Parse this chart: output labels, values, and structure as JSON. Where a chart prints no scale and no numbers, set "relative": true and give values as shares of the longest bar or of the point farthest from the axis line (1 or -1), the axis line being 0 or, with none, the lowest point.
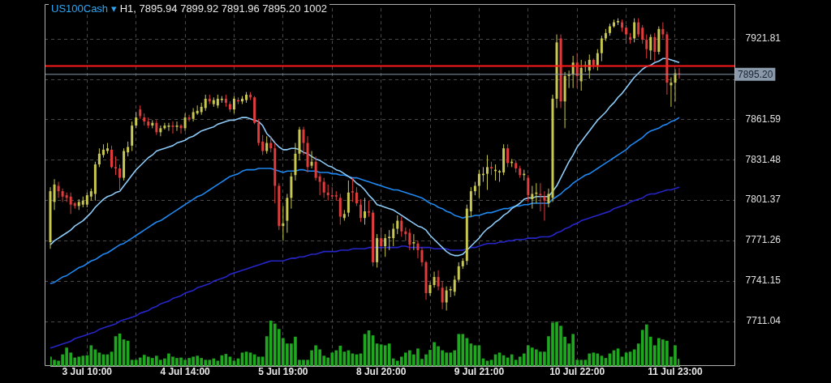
{
  "chart_data": [
    {
      "type": "candlestick",
      "title": "US100Cash ▾",
      "subtitle": "H1, 7895.94 7899.92 7891.96 7895.20 1002",
      "categories": [
        null,
        null,
        null,
        null,
        null,
        null,
        null,
        null,
        null,
        "3 Jul 10:00",
        null,
        null,
        null,
        null,
        null,
        null,
        null,
        null,
        null,
        null,
        null,
        null,
        null,
        null,
        null,
        null,
        null,
        null,
        null,
        null,
        null,
        null,
        null,
        "4 Jul 14:00",
        null,
        null,
        null,
        null,
        null,
        null,
        null,
        null,
        null,
        null,
        null,
        null,
        null,
        null,
        null,
        null,
        null,
        null,
        null,
        null,
        null,
        null,
        null,
        "5 Jul 19:00",
        null,
        null,
        null,
        null,
        null,
        null,
        null,
        null,
        null,
        null,
        null,
        null,
        null,
        null,
        null,
        null,
        null,
        null,
        null,
        null,
        null,
        null,
        null,
        "8 Jul 20:00",
        null,
        null,
        null,
        null,
        null,
        null,
        null,
        null,
        null,
        null,
        null,
        null,
        null,
        null,
        null,
        null,
        null,
        null,
        null,
        null,
        null,
        null,
        null,
        "9 Jul 21:00",
        null,
        null,
        null,
        null,
        null,
        null,
        null,
        null,
        null,
        null,
        null,
        null,
        null,
        null,
        null,
        null,
        null,
        null,
        null,
        null,
        null,
        null,
        null,
        "10 Jul 22:00",
        null,
        null,
        null,
        null,
        null,
        null,
        null,
        null,
        null,
        null,
        null,
        null,
        null,
        null,
        null,
        null,
        null,
        null,
        null,
        null,
        null,
        null,
        null,
        "11 Jul 23:00",
        null
      ],
      "ohlc": [
        [
          7770,
          7811,
          7765,
          7808
        ],
        [
          7800,
          7817,
          7794,
          7813
        ],
        [
          7812,
          7815,
          7803,
          7808
        ],
        [
          7808,
          7810,
          7800,
          7804
        ],
        [
          7805,
          7807,
          7800,
          7803
        ],
        [
          7804,
          7807,
          7791,
          7798
        ],
        [
          7799,
          7800,
          7795,
          7797
        ],
        [
          7797,
          7802,
          7794,
          7800
        ],
        [
          7798,
          7804,
          7796,
          7801
        ],
        [
          7798,
          7807,
          7796,
          7805
        ],
        [
          7804,
          7810,
          7801,
          7808
        ],
        [
          7806,
          7830,
          7801,
          7828
        ],
        [
          7828,
          7840,
          7826,
          7836
        ],
        [
          7835,
          7843,
          7833,
          7839
        ],
        [
          7838,
          7844,
          7836,
          7840
        ],
        [
          7839,
          7842,
          7825,
          7826
        ],
        [
          7826,
          7834,
          7820,
          7825
        ],
        [
          7825,
          7828,
          7808,
          7818
        ],
        [
          7818,
          7840,
          7816,
          7838
        ],
        [
          7837,
          7845,
          7834,
          7841
        ],
        [
          7842,
          7860,
          7838,
          7857
        ],
        [
          7857,
          7867,
          7855,
          7863
        ],
        [
          7869,
          7872,
          7862,
          7864
        ],
        [
          7863,
          7866,
          7857,
          7860
        ],
        [
          7860,
          7863,
          7855,
          7857
        ],
        [
          7857,
          7861,
          7855,
          7859
        ],
        [
          7859,
          7861,
          7850,
          7852
        ],
        [
          7852,
          7857,
          7849,
          7855
        ],
        [
          7855,
          7859,
          7854,
          7857
        ],
        [
          7856,
          7859,
          7853,
          7857
        ],
        [
          7857,
          7860,
          7851,
          7856
        ],
        [
          7856,
          7860,
          7853,
          7857
        ],
        [
          7857,
          7858,
          7851,
          7855
        ],
        [
          7855,
          7866,
          7853,
          7863
        ],
        [
          7863,
          7865,
          7860,
          7862
        ],
        [
          7862,
          7870,
          7860,
          7867
        ],
        [
          7866,
          7872,
          7865,
          7868
        ],
        [
          7867,
          7874,
          7865,
          7871
        ],
        [
          7870,
          7880,
          7868,
          7877
        ],
        [
          7877,
          7880,
          7873,
          7875
        ],
        [
          7873,
          7878,
          7871,
          7876
        ],
        [
          7872,
          7880,
          7870,
          7877
        ],
        [
          7876,
          7879,
          7874,
          7877
        ],
        [
          7877,
          7880,
          7871,
          7874
        ],
        [
          7873,
          7875,
          7867,
          7869
        ],
        [
          7869,
          7879,
          7866,
          7877
        ],
        [
          7876,
          7878,
          7873,
          7875
        ],
        [
          7875,
          7879,
          7873,
          7877
        ],
        [
          7876,
          7882,
          7874,
          7880
        ],
        [
          7880,
          7882,
          7876,
          7878
        ],
        [
          7878,
          7879,
          7858,
          7859
        ],
        [
          7859,
          7862,
          7842,
          7844
        ],
        [
          7845,
          7850,
          7835,
          7838
        ],
        [
          7838,
          7849,
          7836,
          7844
        ],
        [
          7844,
          7849,
          7837,
          7840
        ],
        [
          7840,
          7844,
          7799,
          7812
        ],
        [
          7812,
          7814,
          7779,
          7782
        ],
        [
          7782,
          7797,
          7771,
          7784
        ],
        [
          7786,
          7806,
          7777,
          7803
        ],
        [
          7803,
          7822,
          7795,
          7819
        ],
        [
          7820,
          7844,
          7816,
          7836
        ],
        [
          7836,
          7856,
          7831,
          7854
        ],
        [
          7854,
          7856,
          7835,
          7844
        ],
        [
          7844,
          7849,
          7822,
          7826
        ],
        [
          7827,
          7838,
          7825,
          7830
        ],
        [
          7830,
          7834,
          7816,
          7818
        ],
        [
          7819,
          7821,
          7805,
          7815
        ],
        [
          7815,
          7818,
          7803,
          7807
        ],
        [
          7807,
          7813,
          7801,
          7805
        ],
        [
          7805,
          7811,
          7802,
          7804
        ],
        [
          7805,
          7808,
          7801,
          7804
        ],
        [
          7803,
          7806,
          7783,
          7789
        ],
        [
          7788,
          7794,
          7786,
          7791
        ],
        [
          7792,
          7816,
          7789,
          7807
        ],
        [
          7808,
          7818,
          7800,
          7807
        ],
        [
          7807,
          7811,
          7797,
          7799
        ],
        [
          7798,
          7802,
          7785,
          7788
        ],
        [
          7788,
          7803,
          7783,
          7793
        ],
        [
          7793,
          7801,
          7789,
          7792
        ],
        [
          7792,
          7794,
          7752,
          7755
        ],
        [
          7755,
          7776,
          7751,
          7773
        ],
        [
          7773,
          7781,
          7763,
          7767
        ],
        [
          7767,
          7776,
          7759,
          7773
        ],
        [
          7773,
          7779,
          7764,
          7774
        ],
        [
          7773,
          7784,
          7767,
          7780
        ],
        [
          7780,
          7790,
          7776,
          7786
        ],
        [
          7786,
          7789,
          7774,
          7778
        ],
        [
          7778,
          7781,
          7771,
          7776
        ],
        [
          7777,
          7780,
          7764,
          7768
        ],
        [
          7769,
          7776,
          7764,
          7770
        ],
        [
          7769,
          7771,
          7758,
          7764
        ],
        [
          7764,
          7766,
          7752,
          7755
        ],
        [
          7755,
          7756,
          7727,
          7732
        ],
        [
          7732,
          7740,
          7730,
          7738
        ],
        [
          7738,
          7748,
          7736,
          7744
        ],
        [
          7744,
          7749,
          7734,
          7737
        ],
        [
          7736,
          7741,
          7720,
          7725
        ],
        [
          7725,
          7737,
          7719,
          7734
        ],
        [
          7734,
          7737,
          7729,
          7735
        ],
        [
          7733,
          7745,
          7730,
          7742
        ],
        [
          7742,
          7755,
          7740,
          7752
        ],
        [
          7752,
          7758,
          7750,
          7756
        ],
        [
          7756,
          7798,
          7753,
          7795
        ],
        [
          7793,
          7811,
          7789,
          7808
        ],
        [
          7808,
          7815,
          7805,
          7812
        ],
        [
          7812,
          7824,
          7803,
          7821
        ],
        [
          7820,
          7826,
          7815,
          7821
        ],
        [
          7821,
          7835,
          7809,
          7826
        ],
        [
          7826,
          7830,
          7820,
          7825
        ],
        [
          7823,
          7828,
          7816,
          7824
        ],
        [
          7822,
          7824,
          7815,
          7823
        ],
        [
          7822,
          7843,
          7820,
          7840
        ],
        [
          7840,
          7843,
          7826,
          7829
        ],
        [
          7829,
          7832,
          7826,
          7830
        ],
        [
          7829,
          7831,
          7822,
          7825
        ],
        [
          7825,
          7827,
          7818,
          7820
        ],
        [
          7820,
          7824,
          7816,
          7821
        ],
        [
          7818,
          7820,
          7800,
          7805
        ],
        [
          7802,
          7812,
          7795,
          7806
        ],
        [
          7806,
          7814,
          7799,
          7807
        ],
        [
          7806,
          7814,
          7793,
          7805
        ],
        [
          7804,
          7808,
          7786,
          7801
        ],
        [
          7799,
          7810,
          7796,
          7806
        ],
        [
          7803,
          7880,
          7800,
          7877
        ],
        [
          7877,
          7925,
          7870,
          7919
        ],
        [
          7922,
          7925,
          7870,
          7875
        ],
        [
          7875,
          7897,
          7855,
          7894
        ],
        [
          7894,
          7898,
          7885,
          7895
        ],
        [
          7895,
          7909,
          7885,
          7904
        ],
        [
          7904,
          7911,
          7885,
          7894
        ],
        [
          7890,
          7906,
          7883,
          7900
        ],
        [
          7901,
          7905,
          7897,
          7902
        ],
        [
          7898,
          7910,
          7892,
          7906
        ],
        [
          7906,
          7907,
          7899,
          7902
        ],
        [
          7902,
          7914,
          7898,
          7911
        ],
        [
          7911,
          7924,
          7905,
          7922
        ],
        [
          7922,
          7929,
          7920,
          7926
        ],
        [
          7926,
          7933,
          7924,
          7931
        ],
        [
          7931,
          7936,
          7930,
          7934
        ],
        [
          7934,
          7937,
          7932,
          7935
        ],
        [
          7934,
          7936,
          7927,
          7930
        ],
        [
          7930,
          7932,
          7918,
          7925
        ],
        [
          7923,
          7926,
          7918,
          7921
        ],
        [
          7922,
          7937,
          7919,
          7934
        ],
        [
          7934,
          7937,
          7923,
          7925
        ],
        [
          7930,
          7932,
          7918,
          7921
        ],
        [
          7921,
          7925,
          7907,
          7914
        ],
        [
          7913,
          7925,
          7906,
          7923
        ],
        [
          7923,
          7926,
          7905,
          7912
        ],
        [
          7912,
          7931,
          7910,
          7929
        ],
        [
          7929,
          7934,
          7922,
          7925
        ],
        [
          7925,
          7927,
          7880,
          7889
        ],
        [
          7887,
          7893,
          7871,
          7889
        ],
        [
          7889,
          7899,
          7875,
          7896
        ],
        [
          7895.94,
          7899.92,
          7891.96,
          7895.2
        ]
      ],
      "colors": [
        "#c8c850",
        "#c8c850",
        "#e03c3c",
        "#e03c3c",
        "#e03c3c",
        "#e03c3c",
        "#e03c3c",
        "#c8c850",
        "#c8c850",
        "#c8c850",
        "#c8c850",
        "#c8c850",
        "#c8c850",
        "#c8c850",
        "#c8c850",
        "#e03c3c",
        "#e03c3c",
        "#e03c3c",
        "#c8c850",
        "#c8c850",
        "#c8c850",
        "#c8c850",
        "#e03c3c",
        "#e03c3c",
        "#e03c3c",
        "#c8c850",
        "#e03c3c",
        "#c8c850",
        "#c8c850",
        "#c8c850",
        "#e03c3c",
        "#c8c850",
        "#e03c3c",
        "#c8c850",
        "#e03c3c",
        "#c8c850",
        "#c8c850",
        "#c8c850",
        "#c8c850",
        "#e03c3c",
        "#c8c850",
        "#c8c850",
        "#c8c850",
        "#e03c3c",
        "#e03c3c",
        "#c8c850",
        "#e03c3c",
        "#c8c850",
        "#c8c850",
        "#e03c3c",
        "#e03c3c",
        "#e03c3c",
        "#e03c3c",
        "#c8c850",
        "#e03c3c",
        "#e03c3c",
        "#e03c3c",
        "#c8c850",
        "#c8c850",
        "#c8c850",
        "#c8c850",
        "#c8c850",
        "#e03c3c",
        "#e03c3c",
        "#c8c850",
        "#e03c3c",
        "#e03c3c",
        "#e03c3c",
        "#e03c3c",
        "#e03c3c",
        "#e03c3c",
        "#e03c3c",
        "#c8c850",
        "#c8c850",
        "#e03c3c",
        "#e03c3c",
        "#e03c3c",
        "#c8c850",
        "#e03c3c",
        "#e03c3c",
        "#c8c850",
        "#e03c3c",
        "#c8c850",
        "#c8c850",
        "#c8c850",
        "#c8c850",
        "#e03c3c",
        "#e03c3c",
        "#e03c3c",
        "#c8c850",
        "#e03c3c",
        "#e03c3c",
        "#e03c3c",
        "#c8c850",
        "#c8c850",
        "#e03c3c",
        "#e03c3c",
        "#c8c850",
        "#c8c850",
        "#c8c850",
        "#c8c850",
        "#c8c850",
        "#c8c850",
        "#c8c850",
        "#c8c850",
        "#c8c850",
        "#c8c850",
        "#c8c850",
        "#e03c3c",
        "#c8c850",
        "#c8c850",
        "#c8c850",
        "#e03c3c",
        "#c8c850",
        "#e03c3c",
        "#e03c3c",
        "#c8c850",
        "#e03c3c",
        "#c8c850",
        "#c8c850",
        "#e03c3c",
        "#e03c3c",
        "#c8c850",
        "#c8c850",
        "#c8c850",
        "#e03c3c",
        "#c8c850",
        "#c8c850",
        "#c8c850",
        "#e03c3c",
        "#c8c850",
        "#c8c850",
        "#c8c850",
        "#e03c3c",
        "#c8c850",
        "#c8c850",
        "#c8c850",
        "#c8c850",
        "#c8c850",
        "#c8c850",
        "#e03c3c",
        "#e03c3c",
        "#e03c3c",
        "#c8c850",
        "#e03c3c",
        "#e03c3c",
        "#e03c3c",
        "#c8c850",
        "#e03c3c",
        "#c8c850",
        "#e03c3c",
        "#e03c3c",
        "#c8c850",
        "#c8c850",
        "#e03c3c"
      ],
      "series": [
        {
          "type": "line",
          "color": "#8ccaf7",
          "values": [
            7768,
            7771,
            7773,
            7775,
            7777,
            7779,
            7782,
            7784,
            7786,
            7789,
            7792,
            7796,
            7799,
            7802,
            7804,
            7805,
            7807,
            7808,
            7812,
            7816,
            7820,
            7824,
            7827,
            7830,
            7833,
            7835,
            7838,
            7839,
            7840,
            7841,
            7842,
            7844,
            7845,
            7846,
            7848,
            7849,
            7851,
            7853,
            7854,
            7855,
            7856,
            7858,
            7859,
            7860,
            7861,
            7861,
            7862,
            7863,
            7863,
            7862,
            7861,
            7860,
            7857,
            7851,
            7848,
            7844,
            7841,
            7839,
            7839,
            7840,
            7840,
            7839,
            7837,
            7836,
            7834,
            7832,
            7831,
            7829,
            7827,
            7826,
            7824,
            7823,
            7821,
            7819,
            7817,
            7814,
            7812,
            7809,
            7805,
            7802,
            7798,
            7797,
            7796,
            7795,
            7794,
            7792,
            7790,
            7788,
            7786,
            7784,
            7782,
            7781,
            7779,
            7775,
            7772,
            7769,
            7766,
            7763,
            7761,
            7760,
            7760,
            7761,
            7764,
            7767,
            7770,
            7773,
            7777,
            7780,
            7782,
            7785,
            7787,
            7790,
            7792,
            7795,
            7797,
            7799,
            7802,
            7803,
            7803,
            7804,
            7804,
            7804,
            7804,
            7808,
            7812,
            7818,
            7824,
            7830,
            7835,
            7841,
            7845,
            7849,
            7853,
            7857,
            7861,
            7864,
            7867,
            7871,
            7874,
            7878,
            7881,
            7885,
            7889,
            7893,
            7896,
            7899,
            7901,
            7902,
            7904,
            7905,
            7907,
            7907,
            7906,
            7905,
            7904
          ]
        },
        {
          "type": "line",
          "color": "#1e88f0",
          "values": [
            7739,
            7740,
            7742,
            7744,
            7745,
            7747,
            7749,
            7751,
            7752,
            7754,
            7756,
            7757,
            7759,
            7761,
            7762,
            7764,
            7766,
            7768,
            7769,
            7771,
            7773,
            7775,
            7777,
            7779,
            7781,
            7783,
            7785,
            7786,
            7788,
            7790,
            7792,
            7794,
            7796,
            7798,
            7800,
            7802,
            7804,
            7805,
            7807,
            7809,
            7811,
            7813,
            7815,
            7817,
            7819,
            7820,
            7821,
            7823,
            7824,
            7824,
            7824,
            7825,
            7825,
            7825,
            7825,
            7824,
            7823,
            7822,
            7823,
            7823,
            7823,
            7824,
            7824,
            7823,
            7823,
            7823,
            7822,
            7822,
            7822,
            7821,
            7821,
            7820,
            7820,
            7819,
            7818,
            7818,
            7817,
            7816,
            7815,
            7814,
            7813,
            7812,
            7811,
            7810,
            7809,
            7809,
            7808,
            7807,
            7806,
            7805,
            7804,
            7803,
            7801,
            7799,
            7798,
            7796,
            7795,
            7793,
            7792,
            7790,
            7789,
            7788,
            7789,
            7789,
            7790,
            7790,
            7791,
            7792,
            7792,
            7793,
            7794,
            7795,
            7795,
            7796,
            7797,
            7797,
            7798,
            7798,
            7799,
            7799,
            7799,
            7799,
            7799,
            7802,
            7804,
            7806,
            7809,
            7811,
            7814,
            7816,
            7818,
            7820,
            7821,
            7823,
            7825,
            7827,
            7829,
            7831,
            7833,
            7835,
            7837,
            7839,
            7842,
            7844,
            7846,
            7848,
            7851,
            7853,
            7854,
            7855,
            7857,
            7858,
            7860,
            7861,
            7863
          ]
        },
        {
          "type": "line",
          "color": "#2626c8",
          "values": [
            7691,
            7692,
            7693,
            7694,
            7695,
            7696,
            7698,
            7699,
            7700,
            7701,
            7702,
            7703,
            7705,
            7706,
            7707,
            7708,
            7709,
            7711,
            7712,
            7713,
            7714,
            7715,
            7717,
            7718,
            7719,
            7721,
            7722,
            7724,
            7725,
            7726,
            7728,
            7729,
            7730,
            7732,
            7733,
            7734,
            7736,
            7737,
            7738,
            7739,
            7741,
            7742,
            7743,
            7744,
            7746,
            7747,
            7748,
            7749,
            7750,
            7751,
            7752,
            7753,
            7754,
            7755,
            7756,
            7756,
            7756,
            7756,
            7757,
            7758,
            7758,
            7759,
            7759,
            7760,
            7761,
            7761,
            7762,
            7763,
            7763,
            7763,
            7763,
            7764,
            7764,
            7764,
            7765,
            7765,
            7765,
            7765,
            7766,
            7766,
            7766,
            7766,
            7766,
            7766,
            7766,
            7766,
            7767,
            7767,
            7766,
            7766,
            7766,
            7766,
            7766,
            7766,
            7765,
            7765,
            7765,
            7765,
            7764,
            7764,
            7764,
            7764,
            7765,
            7766,
            7766,
            7767,
            7768,
            7769,
            7769,
            7769,
            7770,
            7770,
            7771,
            7771,
            7772,
            7772,
            7772,
            7773,
            7773,
            7773,
            7774,
            7774,
            7774,
            7775,
            7777,
            7778,
            7780,
            7781,
            7783,
            7784,
            7786,
            7787,
            7788,
            7789,
            7790,
            7791,
            7792,
            7793,
            7795,
            7796,
            7797,
            7798,
            7800,
            7801,
            7802,
            7803,
            7805,
            7806,
            7806,
            7807,
            7808,
            7809,
            7809,
            7810,
            7811
          ]
        }
      ],
      "ylim": [
        7678.2,
        7944.5
      ],
      "yticks": [
        7711.04,
        7741.15,
        7771.26,
        7801.37,
        7831.48,
        7861.59,
        {
          "value": 7891.7,
          "label": null
        },
        7921.81
      ],
      "grid": true,
      "ref_lines": [
        {
          "axis": "y",
          "value": 7901.5,
          "color": "#ff1a1a"
        },
        {
          "axis": "y",
          "value": 7895.2,
          "label": "7895.20",
          "color": "#8a9aab"
        }
      ]
    },
    {
      "type": "bar",
      "relative": true,
      "color": "#1fa81f",
      "tick_labels": false,
      "categories": [
        null,
        null,
        null,
        null,
        null,
        null,
        null,
        null,
        null,
        null,
        null,
        null,
        null,
        null,
        null,
        null,
        null,
        null,
        null,
        null,
        null,
        null,
        null,
        null,
        null,
        null,
        null,
        null,
        null,
        null,
        null,
        null,
        null,
        null,
        null,
        null,
        null,
        null,
        null,
        null,
        null,
        null,
        null,
        null,
        null,
        null,
        null,
        null,
        null,
        null,
        null,
        null,
        null,
        null,
        null,
        null,
        null,
        null,
        null,
        null,
        null,
        null,
        null,
        null,
        null,
        null,
        null,
        null,
        null,
        null,
        null,
        null,
        null,
        null,
        null,
        null,
        null,
        null,
        null,
        null,
        null,
        null,
        null,
        null,
        null,
        null,
        null,
        null,
        null,
        null,
        null,
        null,
        null,
        null,
        null,
        null,
        null,
        null,
        null,
        null,
        null,
        null,
        null,
        null,
        null,
        null,
        null,
        null,
        null,
        null,
        null,
        null,
        null,
        null,
        null,
        null,
        null,
        null,
        null,
        null,
        null,
        null,
        null,
        null,
        null,
        null,
        null,
        null,
        null,
        null,
        null,
        null,
        null,
        null,
        null,
        null,
        null,
        null,
        null,
        null,
        null,
        null,
        null,
        null,
        null,
        null,
        null,
        null,
        null,
        null,
        null,
        null,
        null,
        null,
        null
      ],
      "values": [
        0.2,
        0.13,
        0.11,
        0.25,
        0.4,
        0.29,
        0.18,
        0.2,
        0.22,
        0.23,
        0.45,
        0.36,
        0.29,
        0.25,
        0.25,
        0.31,
        0.65,
        0.71,
        0.58,
        0.55,
        0.13,
        0.13,
        0.18,
        0.24,
        0.2,
        0.17,
        0.22,
        0.13,
        0.16,
        0.27,
        0.2,
        0.17,
        0.18,
        0.13,
        0.17,
        0.2,
        0.22,
        0.17,
        0.13,
        0.13,
        0.16,
        0.11,
        0.23,
        0.26,
        0.2,
        0.11,
        0.16,
        0.29,
        0.31,
        0.29,
        0.25,
        0.2,
        0.2,
        0.65,
        1,
        0.93,
        0.81,
        0.61,
        0.49,
        0.49,
        0.64,
        0.13,
        0.13,
        0.13,
        0.34,
        0.45,
        0.36,
        0.22,
        0.18,
        0.29,
        0.34,
        0.44,
        0.31,
        0.34,
        0.27,
        0.25,
        0.27,
        0.7,
        0.78,
        0.67,
        0.49,
        0.47,
        0.45,
        0.49,
        0.16,
        0.11,
        0.2,
        0.29,
        0.34,
        0.25,
        0.38,
        0.15,
        0.25,
        0.35,
        0.52,
        0.43,
        0.34,
        0.29,
        0.29,
        0.34,
        0.7,
        0.7,
        0.61,
        0.49,
        0.45,
        0.45,
        0.16,
        0.11,
        0.13,
        0.25,
        0.29,
        0.23,
        0.18,
        0.25,
        0.13,
        0.2,
        0.27,
        0.45,
        0.4,
        0.36,
        0.31,
        0.31,
        0.65,
        0.95,
        0.97,
        0.88,
        0.64,
        0.49,
        0.7,
        0.13,
        0.13,
        0.13,
        0.27,
        0.29,
        0.27,
        0.22,
        0.17,
        0.27,
        0.34,
        0.38,
        0.2,
        0.29,
        0.31,
        0.36,
        0.49,
        0.79,
        0.91,
        0.64,
        0.45,
        0.61,
        0.58,
        0.55,
        0.2,
        0.45,
        0.15
      ]
    }
  ]
}
